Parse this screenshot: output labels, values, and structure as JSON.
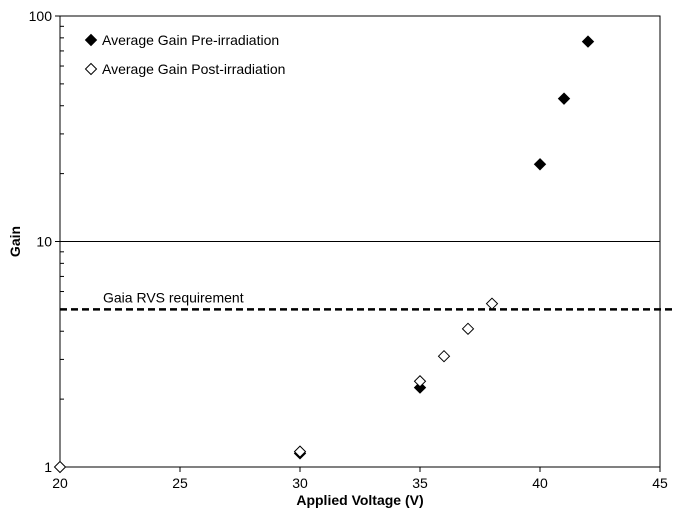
{
  "chart_data": {
    "type": "scatter",
    "xlabel": "Applied Voltage (V)",
    "ylabel": "Gain",
    "xlim": [
      20,
      45
    ],
    "ylim": [
      1,
      100
    ],
    "yscale": "log",
    "xticks": [
      "20",
      "25",
      "30",
      "35",
      "40",
      "45"
    ],
    "yticks": [
      "1",
      "10",
      "100"
    ],
    "grid": "horizontal major line at 10",
    "legend_position": "top-left",
    "series": [
      {
        "name": "Average Gain Pre-irradiation",
        "marker": "filled-diamond",
        "color": "#000000",
        "x": [
          30,
          35,
          40,
          41,
          42
        ],
        "y": [
          1.15,
          2.25,
          22,
          43,
          77
        ]
      },
      {
        "name": "Average Gain Post-irradiation",
        "marker": "open-diamond",
        "color": "#000000",
        "x": [
          20,
          30,
          35,
          36,
          37,
          38
        ],
        "y": [
          1.0,
          1.17,
          2.4,
          3.1,
          4.1,
          5.3
        ]
      }
    ],
    "annotations": [
      {
        "text": "Gaia RVS requirement",
        "y": 5.0,
        "style": "dashed"
      }
    ]
  }
}
